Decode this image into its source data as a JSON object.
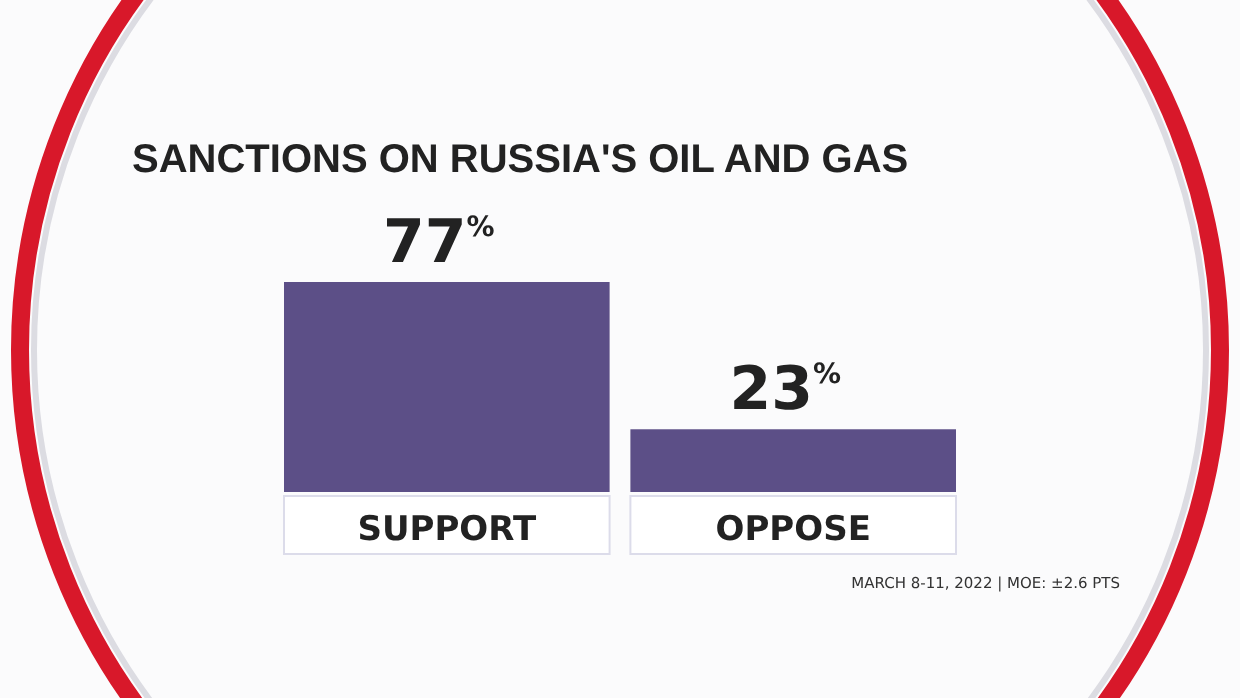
{
  "chart_data": {
    "type": "bar",
    "title": "SANCTIONS ON RUSSIA'S OIL AND GAS",
    "categories": [
      "SUPPORT",
      "OPPOSE"
    ],
    "values": [
      77,
      23
    ],
    "color": "#5c4f87",
    "value_labels": [
      "77$^{%}$",
      "23$^{%}$"
    ],
    "annotations": [
      "MARCH 8-11, 2022 | MOE: ±2.6 PTS"
    ]
  }
}
